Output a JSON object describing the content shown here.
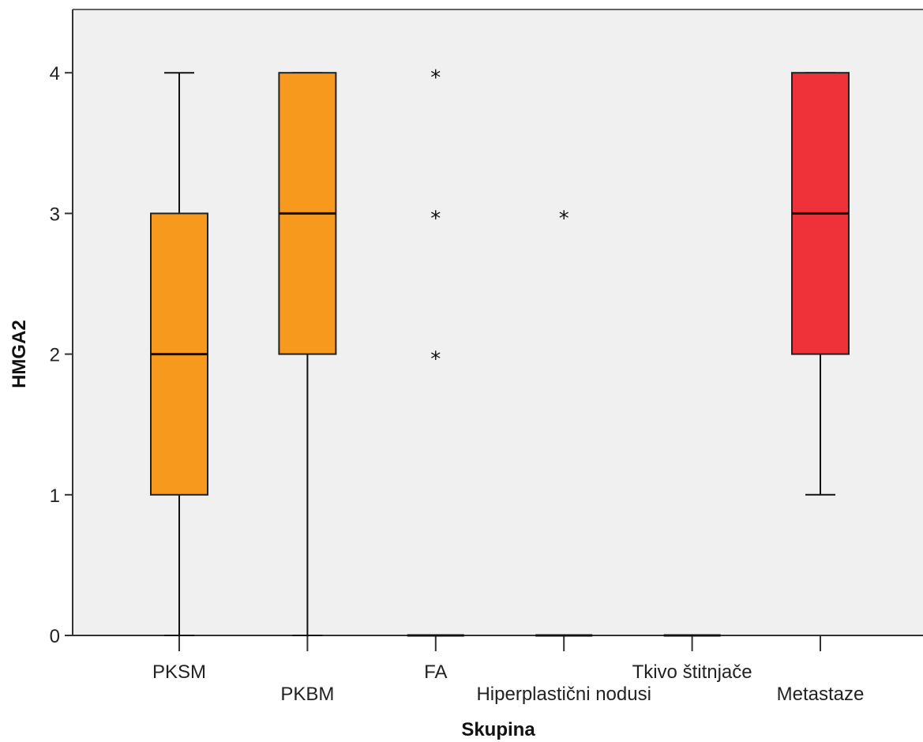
{
  "chart_data": {
    "type": "boxplot",
    "xlabel": "Skupina",
    "ylabel": "HMGA2",
    "ylim": [
      0,
      4.45
    ],
    "yticks": [
      0,
      1,
      2,
      3,
      4
    ],
    "grid": false,
    "categories": [
      "PKSM",
      "PKBM",
      "FA",
      "Hiperplastični nodusi",
      "Tkivo štitnjače",
      "Metastaze"
    ],
    "boxes": [
      {
        "category": "PKSM",
        "min": 0,
        "q1": 1,
        "median": 2,
        "q3": 3,
        "max": 4,
        "outliers": [],
        "color": "#f7991c"
      },
      {
        "category": "PKBM",
        "min": 0,
        "q1": 2,
        "median": 3,
        "q3": 4,
        "max": 4,
        "outliers": [],
        "color": "#f7991c"
      },
      {
        "category": "FA",
        "min": 0,
        "q1": 0,
        "median": 0,
        "q3": 0,
        "max": 0,
        "outliers": [
          2,
          3,
          4
        ],
        "color": "#f7991c"
      },
      {
        "category": "Hiperplastični nodusi",
        "min": 0,
        "q1": 0,
        "median": 0,
        "q3": 0,
        "max": 0,
        "outliers": [
          3
        ],
        "color": "#f7991c"
      },
      {
        "category": "Tkivo štitnjače",
        "min": 0,
        "q1": 0,
        "median": 0,
        "q3": 0,
        "max": 0,
        "outliers": [],
        "color": "#f7991c"
      },
      {
        "category": "Metastaze",
        "min": 1,
        "q1": 2,
        "median": 3,
        "q3": 4,
        "max": 4,
        "outliers": [],
        "color": "#ef3239"
      }
    ],
    "plot_background": "#f0f0f0",
    "outlier_marker": "*"
  }
}
